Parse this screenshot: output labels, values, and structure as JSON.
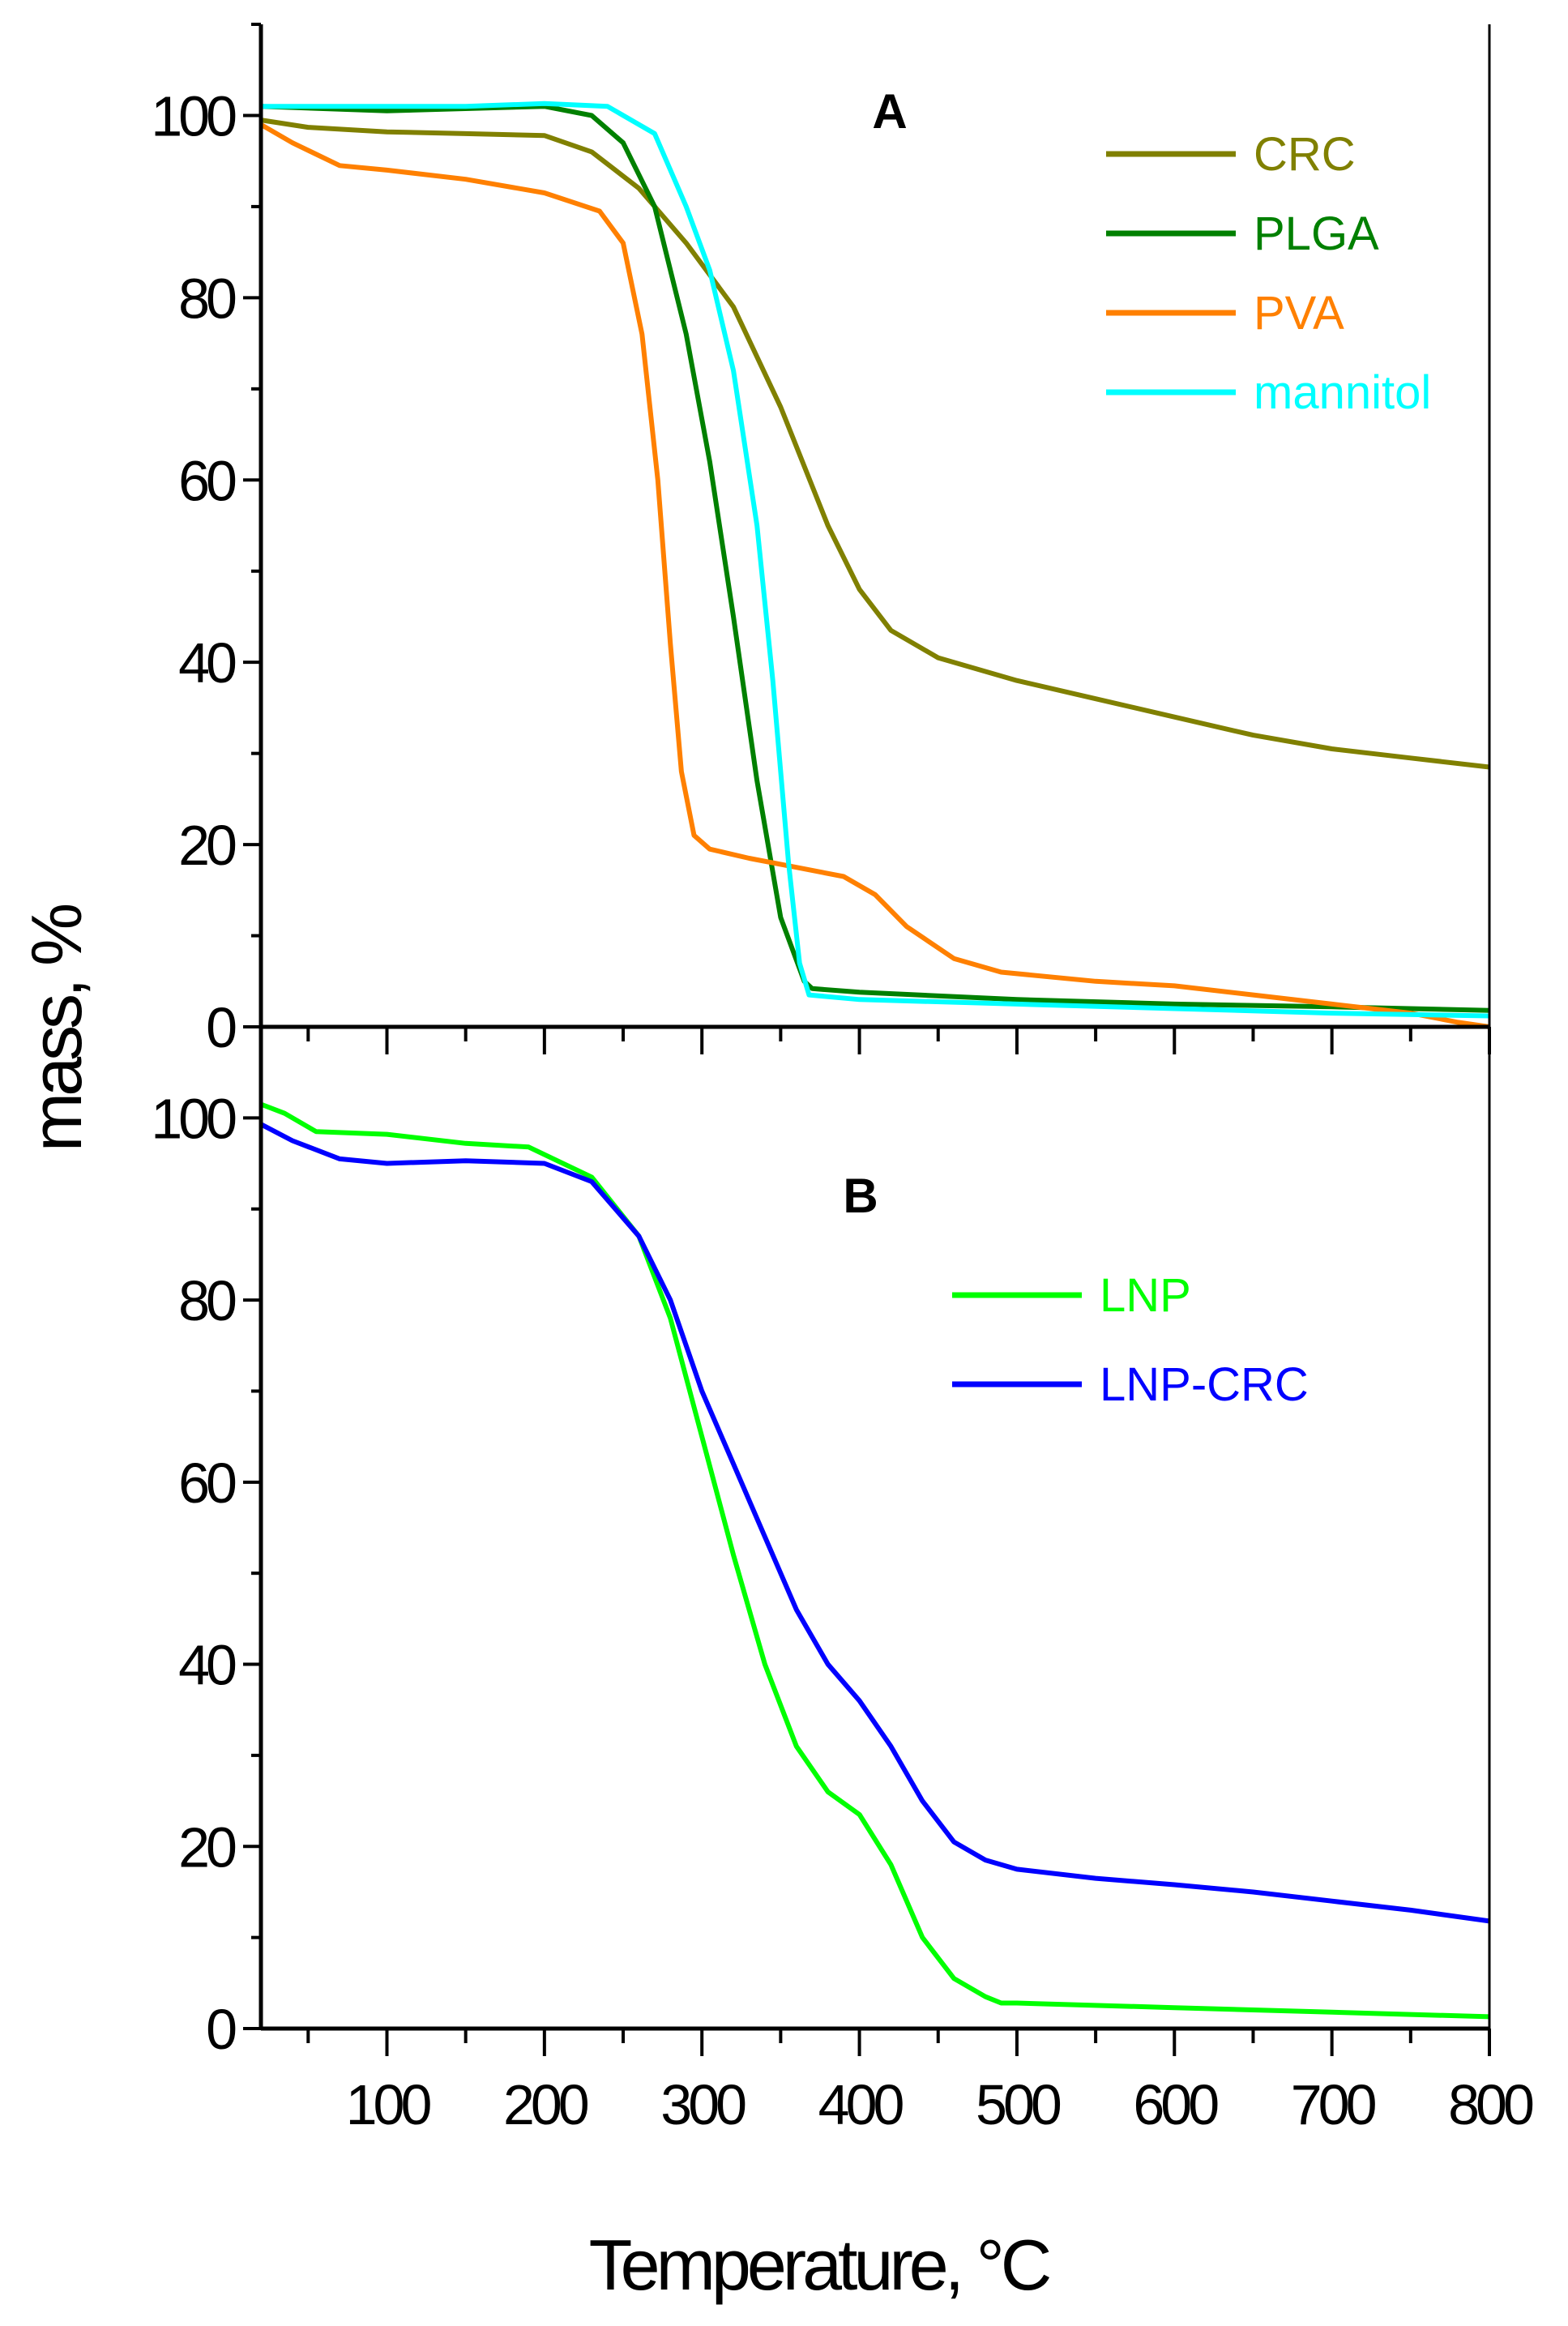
{
  "chart_data": [
    {
      "type": "line",
      "panel_label": "A",
      "xlabel": "Temperature, °C",
      "ylabel": "mass, %",
      "xlim": [
        20,
        800
      ],
      "ylim": [
        0,
        110
      ],
      "y_ticks": [
        "0",
        "20",
        "40",
        "60",
        "80",
        "100"
      ],
      "legend_position": "top-right",
      "series": [
        {
          "name": "CRC",
          "color": "#808000",
          "points": [
            [
              20,
              99.5
            ],
            [
              50,
              98.7
            ],
            [
              100,
              98.2
            ],
            [
              150,
              98
            ],
            [
              200,
              97.8
            ],
            [
              230,
              96
            ],
            [
              260,
              92
            ],
            [
              290,
              86
            ],
            [
              320,
              79
            ],
            [
              350,
              68
            ],
            [
              380,
              55
            ],
            [
              400,
              48
            ],
            [
              420,
              43.5
            ],
            [
              450,
              40.5
            ],
            [
              500,
              38
            ],
            [
              550,
              36
            ],
            [
              600,
              34
            ],
            [
              650,
              32
            ],
            [
              700,
              30.5
            ],
            [
              750,
              29.5
            ],
            [
              800,
              28.5
            ]
          ]
        },
        {
          "name": "PLGA",
          "color": "#008000",
          "points": [
            [
              20,
              101
            ],
            [
              100,
              100.5
            ],
            [
              200,
              101
            ],
            [
              230,
              100
            ],
            [
              250,
              97
            ],
            [
              270,
              90
            ],
            [
              290,
              76
            ],
            [
              305,
              62
            ],
            [
              320,
              45
            ],
            [
              335,
              27
            ],
            [
              350,
              12
            ],
            [
              365,
              5
            ],
            [
              370,
              4.2
            ],
            [
              400,
              3.8
            ],
            [
              500,
              3
            ],
            [
              600,
              2.5
            ],
            [
              700,
              2.2
            ],
            [
              800,
              1.8
            ]
          ]
        },
        {
          "name": "PVA",
          "color": "#ff8000",
          "points": [
            [
              20,
              99
            ],
            [
              40,
              97
            ],
            [
              70,
              94.5
            ],
            [
              100,
              94
            ],
            [
              150,
              93
            ],
            [
              200,
              91.5
            ],
            [
              235,
              89.5
            ],
            [
              250,
              86
            ],
            [
              262,
              76
            ],
            [
              272,
              60
            ],
            [
              280,
              42
            ],
            [
              287,
              28
            ],
            [
              295,
              21
            ],
            [
              305,
              19.5
            ],
            [
              330,
              18.5
            ],
            [
              360,
              17.5
            ],
            [
              390,
              16.5
            ],
            [
              410,
              14.5
            ],
            [
              430,
              11
            ],
            [
              460,
              7.5
            ],
            [
              490,
              6
            ],
            [
              550,
              5
            ],
            [
              600,
              4.5
            ],
            [
              650,
              3.5
            ],
            [
              700,
              2.5
            ],
            [
              750,
              1.5
            ],
            [
              780,
              0.5
            ],
            [
              800,
              0
            ]
          ]
        },
        {
          "name": "mannitol",
          "color": "#00ffff",
          "points": [
            [
              20,
              101
            ],
            [
              100,
              101
            ],
            [
              150,
              101
            ],
            [
              200,
              101.3
            ],
            [
              240,
              101
            ],
            [
              270,
              98
            ],
            [
              290,
              90
            ],
            [
              305,
              83
            ],
            [
              320,
              72
            ],
            [
              335,
              55
            ],
            [
              345,
              38
            ],
            [
              355,
              18
            ],
            [
              362,
              7
            ],
            [
              368,
              3.5
            ],
            [
              400,
              3
            ],
            [
              500,
              2.5
            ],
            [
              600,
              2
            ],
            [
              700,
              1.5
            ],
            [
              800,
              1.2
            ]
          ]
        }
      ]
    },
    {
      "type": "line",
      "panel_label": "B",
      "xlabel": "Temperature, °C",
      "ylabel": "mass, %",
      "xlim": [
        20,
        800
      ],
      "ylim": [
        0,
        110
      ],
      "x_ticks": [
        "100",
        "200",
        "300",
        "400",
        "500",
        "600",
        "700",
        "800"
      ],
      "y_ticks": [
        "0",
        "20",
        "40",
        "60",
        "80",
        "100"
      ],
      "legend_position": "top-right",
      "series": [
        {
          "name": "LNP",
          "color": "#00ff00",
          "points": [
            [
              20,
              101.5
            ],
            [
              35,
              100.5
            ],
            [
              55,
              98.5
            ],
            [
              100,
              98.2
            ],
            [
              150,
              97.2
            ],
            [
              190,
              96.8
            ],
            [
              230,
              93.5
            ],
            [
              260,
              87
            ],
            [
              280,
              78
            ],
            [
              300,
              65
            ],
            [
              320,
              52
            ],
            [
              340,
              40
            ],
            [
              360,
              31
            ],
            [
              380,
              26
            ],
            [
              400,
              23.5
            ],
            [
              420,
              18
            ],
            [
              440,
              10
            ],
            [
              460,
              5.5
            ],
            [
              480,
              3.5
            ],
            [
              490,
              2.8
            ],
            [
              500,
              2.8
            ],
            [
              600,
              2.3
            ],
            [
              700,
              1.8
            ],
            [
              800,
              1.3
            ]
          ]
        },
        {
          "name": "LNP-CRC",
          "color": "#0000ff",
          "points": [
            [
              20,
              99.3
            ],
            [
              40,
              97.5
            ],
            [
              70,
              95.5
            ],
            [
              100,
              95
            ],
            [
              150,
              95.3
            ],
            [
              200,
              95
            ],
            [
              230,
              93
            ],
            [
              260,
              87
            ],
            [
              280,
              80
            ],
            [
              300,
              70
            ],
            [
              320,
              62
            ],
            [
              340,
              54
            ],
            [
              360,
              46
            ],
            [
              380,
              40
            ],
            [
              400,
              36
            ],
            [
              420,
              31
            ],
            [
              440,
              25
            ],
            [
              460,
              20.5
            ],
            [
              480,
              18.5
            ],
            [
              500,
              17.5
            ],
            [
              550,
              16.5
            ],
            [
              600,
              15.8
            ],
            [
              650,
              15
            ],
            [
              700,
              14
            ],
            [
              750,
              13
            ],
            [
              800,
              11.8
            ]
          ]
        }
      ]
    }
  ]
}
